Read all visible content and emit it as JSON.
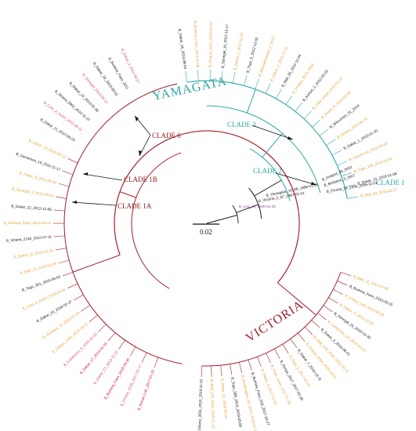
{
  "colors": {
    "victoria": "#a31f2a",
    "yamagata": "#2ea7a7",
    "backbone": "#1a1a1a",
    "label_black": "#111111",
    "label_orange": "#e3a13a",
    "label_pink": "#d94a6e",
    "label_red": "#c8102e",
    "root_purple": "#7b3fb0"
  },
  "labels": {
    "victoria": "VICTORIA",
    "yamagata": "YAMAGATA",
    "clade1": "CLADE 1",
    "clade2": "CLADE 2",
    "clade3": "CLADE 3",
    "clade1a": "CLADE 1A",
    "clade1b": "CLADE 1B",
    "clade6": "CLADE 6",
    "scale": "0.02",
    "root_tip": "B_Lee_40_1940-01-01",
    "yam_tip1": "B_Yamagata_16_88_1988-01-01",
    "yam_tip2": "B_Victoria_2_87_1987-01-01",
    "yam_tip3": "B_Brisbane_3_2007",
    "yam_tip4": "B_Florida_04_2006_2006-11-01",
    "yam_tip5": "B_Finland_39_2010"
  },
  "tips_left": [
    "B_Kenya_Lab_2017-01-22",
    "B_Ghana_4156_2017-02-17",
    "B_Burkina_Faso_2018-09-30",
    "B_Dakar_23_2013-11-22",
    "B_Dakar_17_2014-01-16",
    "B_Cameroon_5_2015-03-10",
    "B_Ghana_1082_2015-10-11",
    "B_Senegal_12_2015-01-28",
    "B_Dakar_15_2016-02-27",
    "B_Cote_d_Ivoire_2016-04-05",
    "B_Togo_301_2016-06-03",
    "B_Mali_15_2016-06-29",
    "B_Dakar_11_2013-12-22",
    "B_Ghana_2240_2012-07-11",
    "B_Burkina_Faso_2012-02-21",
    "B_Dakar_22_2012-12-06",
    "B_Senegal_3_2012-03-23",
    "B_Dakar_8_2011-04-02",
    "B_Cameroon_10_2011-11-17",
    "B_Dakar_19_2010-05-12"
  ],
  "tips_victoria": [
    "B_Ghana_3931_2019_2019-11-22",
    "B_Mali_132_2019_2019-11-14",
    "B_Dakar_12_2019-09-01",
    "B_Togo_389_2019_2019-03-09",
    "B_Washington_02_2019_2019-01-19",
    "B_Burkina_Faso_018_2017-10-27",
    "B_Dakar_4_2017-11-20",
    "B_Cote_Ivoire_2017-07-09",
    "B_Kenya_2017_2017-02-26",
    "B_Togo_5_2017-04-03",
    "B_Dakar_7_2016-12-11",
    "B_Ghana_0204_2016-10-03",
    "B_Mali_078_2016_2016-10-11",
    "B_Dakar_3_2016-08-21",
    "B_Cameroon_13_2016-03-22",
    "B_Senegal_21_2015-12-30",
    "B_Dakar_5_2015-12-09",
    "B_Ghana_Lab_2015-08-26",
    "B_Burkina_Faso_2015-06-15",
    "B_Mali_11_2014-12-05"
  ],
  "tips_yamagata": [
    "B_Dakar_16_2013-08-04",
    "B_Burkina_Faso_2013-01-08",
    "B_Ghana_1124_2013-04-02",
    "B_Senegal_14_2012-10-17",
    "B_Dakar_7_2012-11-22",
    "B_Togo_5_2012-12-02",
    "B_Massachusetts_2_2012",
    "B_Dakar_2_2011-12-11",
    "B_Mali_05_2011-11-04",
    "B_Phuket_3073_2013",
    "B_Kenya_2_2012-03-22",
    "B_Cote_Ivoire_2014-01-27",
    "B_Dakar_8_2014-05-06",
    "B_Wisconsin_01_2014",
    "B_Ghana_2014-09-14",
    "B_Dakar_1_2015-01-20",
    "B_Cameroon_2015-04-03",
    "B_Togo_128_2014-11-04",
    "B_Dakar_10_2016-01-08",
    "B_Mali_19_2016-02-27"
  ],
  "tips_clade6": [
    "B_Dakar_11_2012-04-23",
    "B_Cote_d_Ivoire_2012-05-11",
    "B_Ghana_0002_2012-11-27",
    "B_Dakar_10_2013-01-30",
    "B_Senegal_2013-05-12",
    "B_Dakar_18_2013-09-01",
    "B_Burkina_Faso_2011",
    "B_Dakar_3_2011-08-27"
  ]
}
